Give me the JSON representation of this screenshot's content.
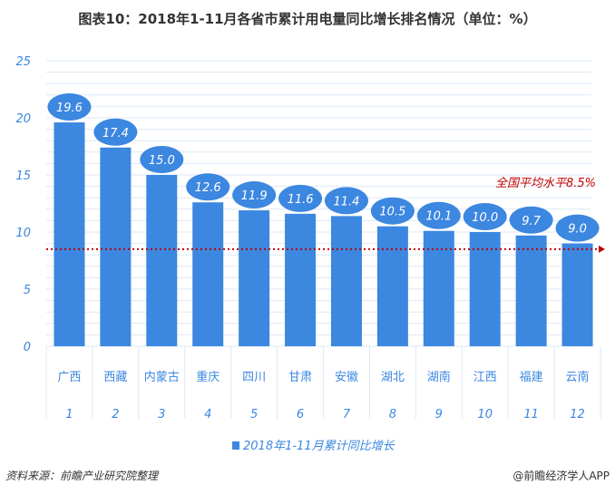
{
  "chart_data": {
    "type": "bar",
    "title": "图表10：2018年1-11月各省市累计用电量同比增长排名情况（单位：%）",
    "categories": [
      "广西",
      "西藏",
      "内蒙古",
      "重庆",
      "四川",
      "甘肃",
      "安徽",
      "湖北",
      "湖南",
      "江西",
      "福建",
      "云南"
    ],
    "ranks": [
      "1",
      "2",
      "3",
      "4",
      "5",
      "6",
      "7",
      "8",
      "9",
      "10",
      "11",
      "12"
    ],
    "series": [
      {
        "name": "2018年1-11月累计同比增长",
        "values": [
          19.6,
          17.4,
          15.0,
          12.6,
          11.9,
          11.6,
          11.4,
          10.5,
          10.1,
          10.0,
          9.7,
          9.0
        ]
      }
    ],
    "value_labels": [
      "19.6",
      "17.4",
      "15.0",
      "12.6",
      "11.9",
      "11.6",
      "11.4",
      "10.5",
      "10.1",
      "10.0",
      "9.7",
      "9.0"
    ],
    "ylim": [
      0,
      25
    ],
    "yticks": [
      "0",
      "5",
      "10",
      "15",
      "20",
      "25"
    ],
    "grid": true,
    "legend_position": "bottom",
    "reference_line": {
      "value": 8.5,
      "label": "全国平均水平8.5%",
      "color": "#c00000"
    },
    "bar_color": "#3c87e0"
  },
  "footer": {
    "source": "资料来源：前瞻产业研究院整理",
    "brand": "@前瞻经济学人APP"
  }
}
